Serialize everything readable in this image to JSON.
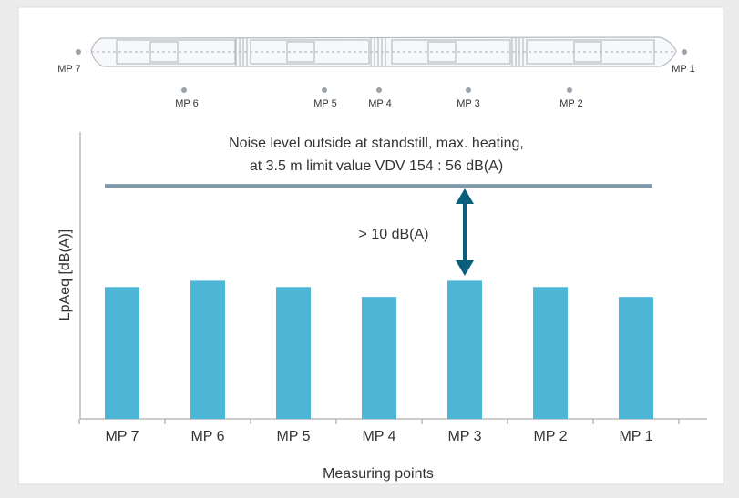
{
  "chart_data": {
    "type": "bar",
    "annotation_lines": [
      "Noise level outside at standstill, max. heating,",
      "at 3.5 m limit value VDV 154 : 56 dB(A)"
    ],
    "gap_label": "> 10 dB(A)",
    "y_label": "LpAeq [dB(A)]",
    "x_label": "Measuring points",
    "categories": [
      "MP 7",
      "MP 6",
      "MP 5",
      "MP 4",
      "MP 3",
      "MP 2",
      "MP 1"
    ],
    "values": [
      44.7,
      45.4,
      44.7,
      43.6,
      45.4,
      44.7,
      43.6
    ],
    "color": "#4db6d6",
    "limit": 56,
    "limit_color": "#7f9aa8",
    "ylim": [
      30,
      62
    ],
    "train_points": [
      "MP 7",
      "MP 6",
      "MP 5",
      "MP 4",
      "MP 3",
      "MP 2",
      "MP 1"
    ]
  }
}
